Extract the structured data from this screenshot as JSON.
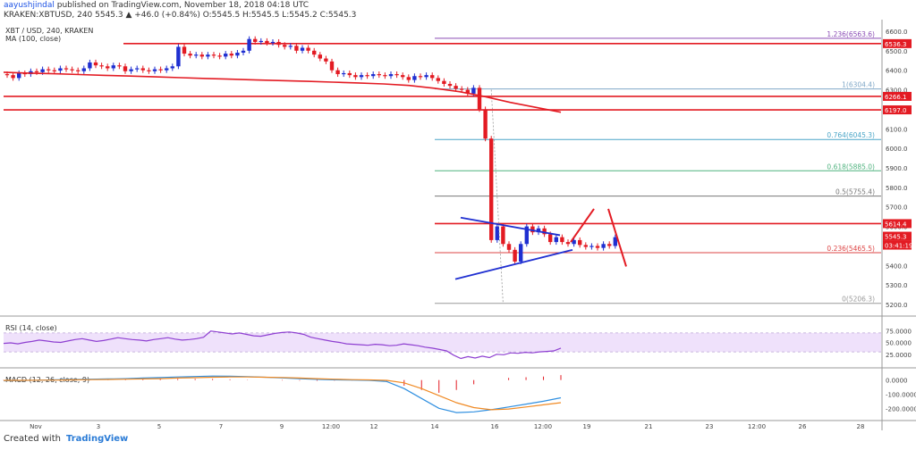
{
  "header": {
    "author": "aayushjindal",
    "published": "published on TradingView.com, November 18, 2018 04:18 UTC",
    "ohlc_line": "KRAKEN:XBTUSD, 240  5545.3 ▲ +46.0 (+0.84%) O:5545.5 H:5545.5 L:5545.2 C:5545.3",
    "symbol": "XBT / USD, 240, KRAKEN",
    "ma_label": "MA (100, close)"
  },
  "footer": {
    "created_with": "Created with",
    "brand": "TradingView"
  },
  "chart_data": [
    {
      "type": "candlestick",
      "title": "XBT / USD, 240, KRAKEN",
      "ylim": [
        5150,
        6650
      ],
      "y_ticks": [
        5200,
        5300,
        5400,
        5500,
        5600,
        5700,
        5800,
        5900,
        6000,
        6100,
        6200,
        6300,
        6400,
        6500,
        6600
      ],
      "x_tick_labels": [
        "Nov",
        "3",
        "5",
        "7",
        "9",
        "12:00",
        "12",
        "14",
        "16",
        "12:00",
        "19",
        "21",
        "23",
        "12:00",
        "26",
        "28"
      ],
      "candles": [
        {
          "o": 6380,
          "c": 6375
        },
        {
          "o": 6375,
          "c": 6360
        },
        {
          "o": 6360,
          "c": 6385
        },
        {
          "o": 6385,
          "c": 6380
        },
        {
          "o": 6380,
          "c": 6395
        },
        {
          "o": 6395,
          "c": 6390
        },
        {
          "o": 6390,
          "c": 6405
        },
        {
          "o": 6405,
          "c": 6400
        },
        {
          "o": 6400,
          "c": 6398
        },
        {
          "o": 6398,
          "c": 6410
        },
        {
          "o": 6410,
          "c": 6405
        },
        {
          "o": 6405,
          "c": 6400
        },
        {
          "o": 6400,
          "c": 6395
        },
        {
          "o": 6395,
          "c": 6410
        },
        {
          "o": 6410,
          "c": 6440
        },
        {
          "o": 6440,
          "c": 6425
        },
        {
          "o": 6425,
          "c": 6420
        },
        {
          "o": 6420,
          "c": 6410
        },
        {
          "o": 6410,
          "c": 6425
        },
        {
          "o": 6425,
          "c": 6420
        },
        {
          "o": 6420,
          "c": 6395
        },
        {
          "o": 6395,
          "c": 6405
        },
        {
          "o": 6405,
          "c": 6410
        },
        {
          "o": 6410,
          "c": 6400
        },
        {
          "o": 6400,
          "c": 6395
        },
        {
          "o": 6395,
          "c": 6405
        },
        {
          "o": 6405,
          "c": 6400
        },
        {
          "o": 6400,
          "c": 6410
        },
        {
          "o": 6410,
          "c": 6420
        },
        {
          "o": 6420,
          "c": 6520
        },
        {
          "o": 6520,
          "c": 6485
        },
        {
          "o": 6485,
          "c": 6475
        },
        {
          "o": 6475,
          "c": 6480
        },
        {
          "o": 6480,
          "c": 6470
        },
        {
          "o": 6470,
          "c": 6480
        },
        {
          "o": 6480,
          "c": 6475
        },
        {
          "o": 6475,
          "c": 6470
        },
        {
          "o": 6470,
          "c": 6485
        },
        {
          "o": 6485,
          "c": 6475
        },
        {
          "o": 6475,
          "c": 6490
        },
        {
          "o": 6490,
          "c": 6500
        },
        {
          "o": 6500,
          "c": 6560
        },
        {
          "o": 6560,
          "c": 6545
        },
        {
          "o": 6545,
          "c": 6550
        },
        {
          "o": 6550,
          "c": 6540
        },
        {
          "o": 6540,
          "c": 6545
        },
        {
          "o": 6545,
          "c": 6530
        },
        {
          "o": 6530,
          "c": 6520
        },
        {
          "o": 6520,
          "c": 6525
        },
        {
          "o": 6525,
          "c": 6500
        },
        {
          "o": 6500,
          "c": 6515
        },
        {
          "o": 6515,
          "c": 6500
        },
        {
          "o": 6500,
          "c": 6480
        },
        {
          "o": 6480,
          "c": 6460
        },
        {
          "o": 6460,
          "c": 6445
        },
        {
          "o": 6445,
          "c": 6400
        },
        {
          "o": 6400,
          "c": 6380
        },
        {
          "o": 6380,
          "c": 6385
        },
        {
          "o": 6385,
          "c": 6375
        },
        {
          "o": 6375,
          "c": 6365
        },
        {
          "o": 6365,
          "c": 6375
        },
        {
          "o": 6375,
          "c": 6370
        },
        {
          "o": 6370,
          "c": 6380
        },
        {
          "o": 6380,
          "c": 6375
        },
        {
          "o": 6375,
          "c": 6370
        },
        {
          "o": 6370,
          "c": 6380
        },
        {
          "o": 6380,
          "c": 6375
        },
        {
          "o": 6375,
          "c": 6365
        },
        {
          "o": 6365,
          "c": 6350
        },
        {
          "o": 6350,
          "c": 6370
        },
        {
          "o": 6370,
          "c": 6365
        },
        {
          "o": 6365,
          "c": 6375
        },
        {
          "o": 6375,
          "c": 6360
        },
        {
          "o": 6360,
          "c": 6345
        },
        {
          "o": 6345,
          "c": 6330
        },
        {
          "o": 6330,
          "c": 6320
        },
        {
          "o": 6320,
          "c": 6305
        },
        {
          "o": 6305,
          "c": 6300
        },
        {
          "o": 6300,
          "c": 6280
        },
        {
          "o": 6280,
          "c": 6310
        },
        {
          "o": 6310,
          "c": 6200
        },
        {
          "o": 6200,
          "c": 6050
        },
        {
          "o": 6050,
          "c": 5530
        },
        {
          "o": 5530,
          "c": 5600
        },
        {
          "o": 5600,
          "c": 5510
        },
        {
          "o": 5510,
          "c": 5480
        },
        {
          "o": 5480,
          "c": 5420
        },
        {
          "o": 5420,
          "c": 5510
        },
        {
          "o": 5510,
          "c": 5600
        },
        {
          "o": 5600,
          "c": 5570
        },
        {
          "o": 5570,
          "c": 5590
        },
        {
          "o": 5590,
          "c": 5560
        },
        {
          "o": 5560,
          "c": 5520
        },
        {
          "o": 5520,
          "c": 5545
        },
        {
          "o": 5545,
          "c": 5520
        },
        {
          "o": 5520,
          "c": 5510
        },
        {
          "o": 5510,
          "c": 5530
        },
        {
          "o": 5530,
          "c": 5505
        },
        {
          "o": 5505,
          "c": 5495
        },
        {
          "o": 5495,
          "c": 5500
        },
        {
          "o": 5500,
          "c": 5490
        },
        {
          "o": 5490,
          "c": 5510
        },
        {
          "o": 5510,
          "c": 5500
        },
        {
          "o": 5500,
          "c": 5545
        }
      ],
      "ma_100": [
        6390,
        6385,
        6382,
        6378,
        6374,
        6370,
        6366,
        6362,
        6358,
        6354,
        6350,
        6347,
        6343,
        6339,
        6335,
        6330,
        6322,
        6308,
        6290,
        6265,
        6235,
        6210,
        6185
      ],
      "horizontal_levels": [
        {
          "price": 6536.3,
          "label": "6536.3"
        },
        {
          "price": 6266.1,
          "label": "6266.1"
        },
        {
          "price": 6197.0,
          "label": "6197.0"
        },
        {
          "price": 5614.4,
          "label": "5614.4"
        }
      ],
      "fibonacci": [
        {
          "ratio": "1.236",
          "price": 6563.6,
          "label": "1.236(6563.6)"
        },
        {
          "ratio": "1",
          "price": 6304.4,
          "label": "1(6304.4)"
        },
        {
          "ratio": "0.764",
          "price": 6045.3,
          "label": "0.764(6045.3)"
        },
        {
          "ratio": "0.618",
          "price": 5885.0,
          "label": "0.618(5885.0)"
        },
        {
          "ratio": "0.5",
          "price": 5755.4,
          "label": "0.5(5755.4)"
        },
        {
          "ratio": "0.236",
          "price": 5465.5,
          "label": "0.236(5465.5)"
        },
        {
          "ratio": "0",
          "price": 5206.3,
          "label": "0(5206.3)"
        }
      ],
      "last_price": "5545.3",
      "countdown": "03:41:19",
      "triangle": {
        "upper_start": 5645,
        "upper_end": 5555,
        "lower_start": 5330,
        "lower_end": 5480
      }
    },
    {
      "type": "line",
      "title": "RSI (14, close)",
      "ylim": [
        0,
        100
      ],
      "y_ticks": [
        25.0,
        50.0,
        75.0
      ],
      "y_tick_labels": [
        "25.0000",
        "50.0000",
        "75.0000"
      ],
      "band": [
        30,
        70
      ],
      "values": [
        48,
        49,
        47,
        50,
        52,
        55,
        53,
        51,
        50,
        53,
        56,
        58,
        55,
        52,
        54,
        57,
        60,
        58,
        56,
        55,
        53,
        56,
        58,
        60,
        57,
        55,
        56,
        58,
        61,
        74,
        72,
        70,
        68,
        70,
        67,
        64,
        63,
        66,
        69,
        71,
        72,
        70,
        67,
        61,
        58,
        55,
        52,
        50,
        47,
        46,
        45,
        44,
        46,
        45,
        43,
        44,
        47,
        45,
        43,
        40,
        38,
        35,
        32,
        23,
        16,
        20,
        17,
        21,
        18,
        25,
        24,
        28,
        27,
        29,
        28,
        30,
        31,
        32,
        38
      ]
    },
    {
      "type": "line",
      "title": "MACD (12, 26, close, 9)",
      "ylim": [
        -280000,
        80000
      ],
      "y_ticks": [
        0,
        -100000,
        -200000
      ],
      "y_tick_labels": [
        "0.0000",
        "-100.0000",
        "-200.0000"
      ],
      "macd": [
        -5000,
        -3000,
        -1000,
        2000,
        4000,
        6000,
        8000,
        10000,
        14000,
        18000,
        22000,
        25000,
        28000,
        27000,
        24000,
        20000,
        15000,
        10000,
        5000,
        2000,
        0,
        -2000,
        -10000,
        -60000,
        -130000,
        -200000,
        -230000,
        -225000,
        -210000,
        -190000,
        -170000,
        -150000,
        -125000
      ],
      "signal": [
        -3000,
        -2000,
        -1000,
        0,
        2000,
        3000,
        4000,
        6000,
        8000,
        10000,
        14000,
        17000,
        20000,
        22000,
        22000,
        20000,
        18000,
        14000,
        10000,
        6000,
        3000,
        1000,
        -2000,
        -20000,
        -60000,
        -110000,
        -160000,
        -195000,
        -210000,
        -205000,
        -190000,
        -175000,
        -160000
      ]
    }
  ]
}
